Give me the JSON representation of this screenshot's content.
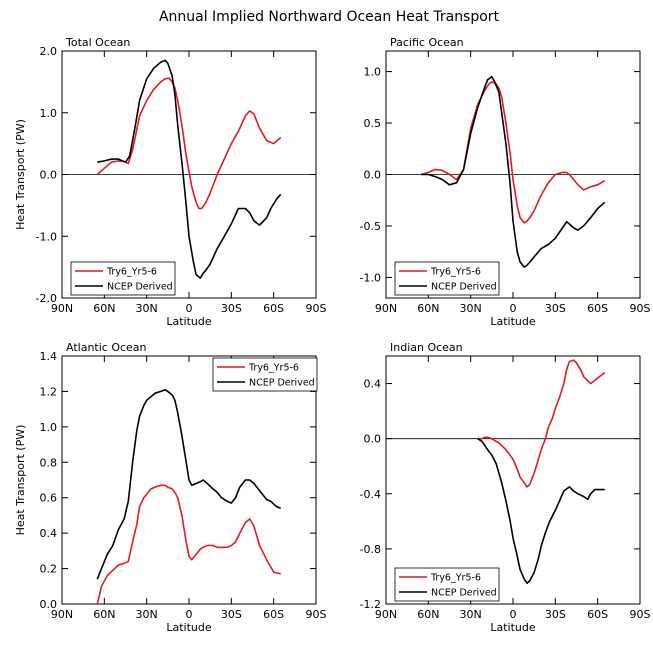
{
  "figure": {
    "title": "Annual Implied Northward Ocean Heat Transport"
  },
  "colors": {
    "model": "#e41a1c",
    "ncep": "#000000"
  },
  "chart_data": [
    {
      "type": "line",
      "title": "Total Ocean",
      "xlabel": "Latitude",
      "ylabel": "Heat Transport (PW)",
      "xlim": [
        90,
        -90
      ],
      "ylim": [
        -2,
        2
      ],
      "x_ticks": [
        90,
        60,
        30,
        0,
        -30,
        -60,
        -90
      ],
      "x_tick_labels": [
        "90N",
        "60N",
        "30N",
        "0",
        "30S",
        "60S",
        "90S"
      ],
      "y_ticks": [
        -2,
        -1,
        0,
        1,
        2
      ],
      "y_tick_labels": [
        "-2.0",
        "-1.0",
        "0.0",
        "1.0",
        "2.0"
      ],
      "zero_line": true,
      "legend": {
        "position": "bottom-left",
        "entries": [
          "Try6_Yr5-6",
          "NCEP Derived"
        ]
      },
      "series": [
        {
          "name": "Try6_Yr5-6",
          "color": "#e41a1c",
          "x": [
            65,
            60,
            55,
            50,
            46,
            43,
            40,
            35,
            30,
            25,
            20,
            17,
            14,
            12,
            10,
            8,
            5,
            2,
            0,
            -2,
            -5,
            -7,
            -9,
            -12,
            -15,
            -20,
            -25,
            -30,
            -35,
            -40,
            -43,
            -46,
            -50,
            -55,
            -60,
            -65
          ],
          "y": [
            0.0,
            0.1,
            0.2,
            0.22,
            0.21,
            0.18,
            0.4,
            0.95,
            1.2,
            1.38,
            1.5,
            1.55,
            1.56,
            1.5,
            1.4,
            1.2,
            0.8,
            0.3,
            0.05,
            -0.2,
            -0.45,
            -0.55,
            -0.55,
            -0.45,
            -0.3,
            0.0,
            0.25,
            0.5,
            0.7,
            0.95,
            1.03,
            0.98,
            0.75,
            0.55,
            0.5,
            0.6
          ]
        },
        {
          "name": "NCEP Derived",
          "color": "#000000",
          "x": [
            65,
            60,
            55,
            50,
            45,
            42,
            38,
            35,
            30,
            25,
            20,
            17,
            15,
            12,
            10,
            8,
            5,
            2,
            0,
            -3,
            -5,
            -8,
            -10,
            -12,
            -15,
            -20,
            -25,
            -30,
            -35,
            -40,
            -43,
            -46,
            -50,
            -55,
            -58,
            -62,
            -65
          ],
          "y": [
            0.2,
            0.22,
            0.25,
            0.25,
            0.2,
            0.3,
            0.8,
            1.2,
            1.55,
            1.72,
            1.82,
            1.85,
            1.8,
            1.6,
            1.3,
            0.8,
            0.2,
            -0.5,
            -1.0,
            -1.4,
            -1.62,
            -1.68,
            -1.6,
            -1.55,
            -1.45,
            -1.2,
            -1.0,
            -0.8,
            -0.55,
            -0.55,
            -0.62,
            -0.75,
            -0.82,
            -0.7,
            -0.55,
            -0.4,
            -0.32
          ]
        }
      ]
    },
    {
      "type": "line",
      "title": "Pacific Ocean",
      "xlabel": "Latitude",
      "ylabel": "",
      "xlim": [
        90,
        -90
      ],
      "ylim": [
        -1.2,
        1.2
      ],
      "x_ticks": [
        90,
        60,
        30,
        0,
        -30,
        -60,
        -90
      ],
      "x_tick_labels": [
        "90N",
        "60N",
        "30N",
        "0",
        "30S",
        "60S",
        "90S"
      ],
      "y_ticks": [
        -1.0,
        -0.5,
        0.0,
        0.5,
        1.0
      ],
      "y_tick_labels": [
        "-1.0",
        "-0.5",
        "0.0",
        "0.5",
        "1.0"
      ],
      "zero_line": true,
      "legend": {
        "position": "bottom-left",
        "entries": [
          "Try6_Yr5-6",
          "NCEP Derived"
        ]
      },
      "series": [
        {
          "name": "Try6_Yr5-6",
          "color": "#e41a1c",
          "x": [
            65,
            60,
            55,
            50,
            45,
            40,
            35,
            30,
            25,
            20,
            17,
            15,
            12,
            10,
            8,
            5,
            2,
            0,
            -3,
            -5,
            -8,
            -10,
            -12,
            -15,
            -20,
            -25,
            -30,
            -35,
            -38,
            -40,
            -43,
            -46,
            -50,
            -55,
            -60,
            -65
          ],
          "y": [
            0.0,
            0.02,
            0.05,
            0.04,
            0.0,
            -0.05,
            0.05,
            0.45,
            0.68,
            0.82,
            0.88,
            0.9,
            0.88,
            0.84,
            0.75,
            0.5,
            0.2,
            -0.05,
            -0.3,
            -0.42,
            -0.47,
            -0.45,
            -0.42,
            -0.35,
            -0.2,
            -0.08,
            0.0,
            0.02,
            0.02,
            0.0,
            -0.05,
            -0.1,
            -0.15,
            -0.12,
            -0.1,
            -0.06
          ]
        },
        {
          "name": "NCEP Derived",
          "color": "#000000",
          "x": [
            65,
            60,
            55,
            50,
            45,
            40,
            35,
            30,
            25,
            20,
            18,
            15,
            13,
            10,
            8,
            5,
            2,
            0,
            -3,
            -5,
            -8,
            -10,
            -12,
            -15,
            -20,
            -25,
            -30,
            -35,
            -38,
            -40,
            -43,
            -46,
            -50,
            -55,
            -60,
            -65
          ],
          "y": [
            0.0,
            0.0,
            -0.02,
            -0.05,
            -0.1,
            -0.08,
            0.05,
            0.4,
            0.65,
            0.85,
            0.92,
            0.95,
            0.9,
            0.8,
            0.6,
            0.3,
            -0.1,
            -0.45,
            -0.75,
            -0.85,
            -0.9,
            -0.88,
            -0.85,
            -0.8,
            -0.72,
            -0.68,
            -0.62,
            -0.52,
            -0.46,
            -0.48,
            -0.52,
            -0.54,
            -0.5,
            -0.42,
            -0.33,
            -0.27
          ]
        }
      ]
    },
    {
      "type": "line",
      "title": "Atlantic Ocean",
      "xlabel": "Latitude",
      "ylabel": "Heat Transport (PW)",
      "xlim": [
        90,
        -90
      ],
      "ylim": [
        0,
        1.4
      ],
      "x_ticks": [
        90,
        60,
        30,
        0,
        -30,
        -60,
        -90
      ],
      "x_tick_labels": [
        "90N",
        "60N",
        "30N",
        "0",
        "30S",
        "60S",
        "90S"
      ],
      "y_ticks": [
        0,
        0.2,
        0.4,
        0.6,
        0.8,
        1.0,
        1.2,
        1.4
      ],
      "y_tick_labels": [
        "0.0",
        "0.2",
        "0.4",
        "0.6",
        "0.8",
        "1.0",
        "1.2",
        "1.4"
      ],
      "zero_line": false,
      "legend": {
        "position": "top-right",
        "entries": [
          "Try6_Yr5-6",
          "NCEP Derived"
        ]
      },
      "series": [
        {
          "name": "Try6_Yr5-6",
          "color": "#e41a1c",
          "x": [
            65,
            62,
            58,
            54,
            50,
            46,
            43,
            40,
            37,
            35,
            32,
            30,
            27,
            24,
            20,
            17,
            15,
            12,
            10,
            8,
            5,
            2,
            0,
            -2,
            -5,
            -8,
            -10,
            -13,
            -17,
            -20,
            -23,
            -27,
            -30,
            -33,
            -36,
            -40,
            -43,
            -46,
            -50,
            -55,
            -60,
            -65
          ],
          "y": [
            0.0,
            0.1,
            0.16,
            0.19,
            0.22,
            0.23,
            0.24,
            0.35,
            0.45,
            0.55,
            0.6,
            0.62,
            0.65,
            0.66,
            0.67,
            0.67,
            0.66,
            0.65,
            0.63,
            0.6,
            0.5,
            0.35,
            0.27,
            0.25,
            0.28,
            0.31,
            0.32,
            0.33,
            0.33,
            0.32,
            0.32,
            0.32,
            0.33,
            0.35,
            0.4,
            0.46,
            0.48,
            0.44,
            0.33,
            0.25,
            0.18,
            0.17
          ]
        },
        {
          "name": "NCEP Derived",
          "color": "#000000",
          "x": [
            65,
            62,
            58,
            54,
            50,
            46,
            43,
            40,
            37,
            35,
            32,
            30,
            27,
            24,
            20,
            17,
            15,
            12,
            10,
            8,
            5,
            2,
            0,
            -2,
            -5,
            -8,
            -10,
            -13,
            -17,
            -20,
            -23,
            -27,
            -30,
            -33,
            -36,
            -40,
            -43,
            -46,
            -50,
            -55,
            -58,
            -62,
            -65
          ],
          "y": [
            0.14,
            0.2,
            0.28,
            0.33,
            0.42,
            0.48,
            0.58,
            0.8,
            0.98,
            1.06,
            1.12,
            1.15,
            1.17,
            1.19,
            1.2,
            1.21,
            1.2,
            1.18,
            1.15,
            1.08,
            0.95,
            0.8,
            0.7,
            0.67,
            0.68,
            0.69,
            0.7,
            0.68,
            0.65,
            0.63,
            0.6,
            0.58,
            0.57,
            0.6,
            0.66,
            0.7,
            0.7,
            0.68,
            0.64,
            0.59,
            0.58,
            0.55,
            0.54
          ]
        }
      ]
    },
    {
      "type": "line",
      "title": "Indian Ocean",
      "xlabel": "Latitude",
      "ylabel": "",
      "xlim": [
        90,
        -90
      ],
      "ylim": [
        -1.2,
        0.6
      ],
      "x_ticks": [
        90,
        60,
        30,
        0,
        -30,
        -60,
        -90
      ],
      "x_tick_labels": [
        "90N",
        "60N",
        "30N",
        "0",
        "30S",
        "60S",
        "90S"
      ],
      "y_ticks": [
        -1.2,
        -0.8,
        -0.4,
        0.0,
        0.4
      ],
      "y_tick_labels": [
        "-1.2",
        "-0.8",
        "-0.4",
        "0.0",
        "0.4"
      ],
      "zero_line": true,
      "legend": {
        "position": "bottom-left",
        "entries": [
          "Try6_Yr5-6",
          "NCEP Derived"
        ]
      },
      "series": [
        {
          "name": "Try6_Yr5-6",
          "color": "#e41a1c",
          "x": [
            25,
            22,
            20,
            18,
            15,
            12,
            10,
            8,
            5,
            2,
            0,
            -3,
            -5,
            -8,
            -10,
            -12,
            -15,
            -18,
            -20,
            -23,
            -25,
            -28,
            -30,
            -33,
            -36,
            -38,
            -40,
            -43,
            -45,
            -48,
            -50,
            -55,
            -60,
            -65
          ],
          "y": [
            0.0,
            0.0,
            0.01,
            0.01,
            0.0,
            -0.02,
            -0.03,
            -0.05,
            -0.08,
            -0.12,
            -0.15,
            -0.22,
            -0.28,
            -0.32,
            -0.35,
            -0.33,
            -0.25,
            -0.15,
            -0.08,
            0.0,
            0.08,
            0.15,
            0.22,
            0.3,
            0.4,
            0.5,
            0.56,
            0.57,
            0.55,
            0.5,
            0.45,
            0.4,
            0.44,
            0.48
          ]
        },
        {
          "name": "NCEP Derived",
          "color": "#000000",
          "x": [
            25,
            22,
            20,
            18,
            15,
            12,
            10,
            8,
            5,
            2,
            0,
            -3,
            -5,
            -8,
            -10,
            -12,
            -15,
            -18,
            -20,
            -23,
            -26,
            -30,
            -33,
            -36,
            -40,
            -43,
            -46,
            -50,
            -53,
            -55,
            -58,
            -62,
            -65
          ],
          "y": [
            0.0,
            -0.02,
            -0.05,
            -0.08,
            -0.12,
            -0.18,
            -0.25,
            -0.32,
            -0.45,
            -0.6,
            -0.72,
            -0.85,
            -0.95,
            -1.02,
            -1.05,
            -1.03,
            -0.97,
            -0.87,
            -0.78,
            -0.68,
            -0.6,
            -0.52,
            -0.45,
            -0.38,
            -0.35,
            -0.38,
            -0.4,
            -0.42,
            -0.44,
            -0.4,
            -0.37,
            -0.37,
            -0.37
          ]
        }
      ]
    }
  ]
}
